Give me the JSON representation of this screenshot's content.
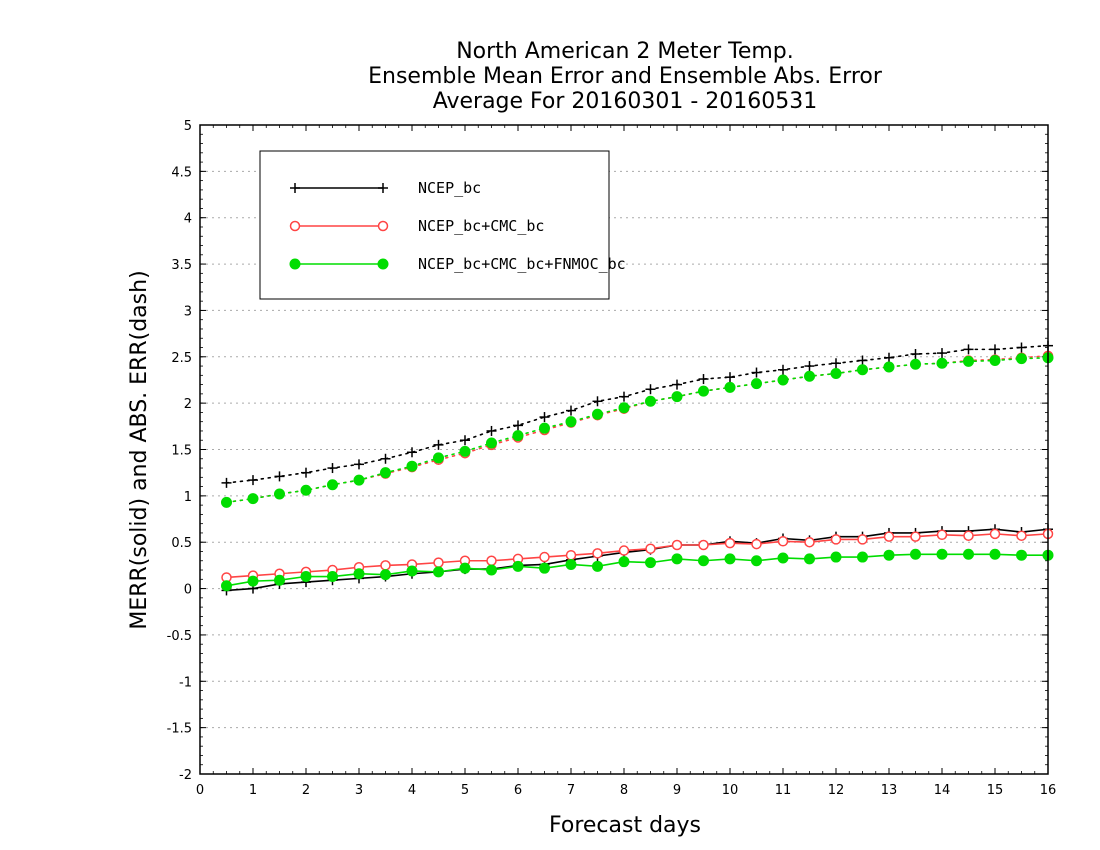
{
  "chart_data": {
    "type": "line",
    "title_lines": [
      "North American 2 Meter Temp.",
      "Ensemble Mean Error and Ensemble Abs. Error",
      "Average For 20160301 - 20160531"
    ],
    "xlabel": "Forecast days",
    "ylabel": "MERR(solid) and ABS. ERR(dash)",
    "xlim": [
      0,
      16
    ],
    "ylim": [
      -2,
      5
    ],
    "x_ticks": [
      0,
      1,
      2,
      3,
      4,
      5,
      6,
      7,
      8,
      9,
      10,
      11,
      12,
      13,
      14,
      15,
      16
    ],
    "y_ticks": [
      -2,
      -1.5,
      -1,
      -0.5,
      0,
      0.5,
      1,
      1.5,
      2,
      2.5,
      3,
      3.5,
      4,
      4.5,
      5
    ],
    "y_tick_labels": [
      "-2",
      "-1.5",
      "-1",
      "-0.5",
      "0",
      "0.5",
      "1",
      "1.5",
      "2",
      "2.5",
      "3",
      "3.5",
      "4",
      "4.5",
      "5"
    ],
    "grid": "horizontal dotted",
    "legend_position": "top-left",
    "x": [
      0.5,
      1,
      1.5,
      2,
      2.5,
      3,
      3.5,
      4,
      4.5,
      5,
      5.5,
      6,
      6.5,
      7,
      7.5,
      8,
      8.5,
      9,
      9.5,
      10,
      10.5,
      11,
      11.5,
      12,
      12.5,
      13,
      13.5,
      14,
      14.5,
      15,
      15.5,
      16
    ],
    "series": [
      {
        "name": "NCEP_bc",
        "color": "#000000",
        "marker": "plus",
        "mean_error": [
          -0.02,
          0.0,
          0.05,
          0.07,
          0.09,
          0.11,
          0.13,
          0.16,
          0.18,
          0.21,
          0.21,
          0.25,
          0.26,
          0.31,
          0.35,
          0.39,
          0.42,
          0.47,
          0.47,
          0.51,
          0.49,
          0.54,
          0.52,
          0.56,
          0.56,
          0.6,
          0.6,
          0.62,
          0.62,
          0.64,
          0.61,
          0.64
        ],
        "abs_error": [
          1.14,
          1.17,
          1.21,
          1.25,
          1.3,
          1.34,
          1.4,
          1.47,
          1.55,
          1.6,
          1.7,
          1.76,
          1.85,
          1.92,
          2.02,
          2.07,
          2.15,
          2.2,
          2.26,
          2.28,
          2.33,
          2.36,
          2.4,
          2.43,
          2.46,
          2.49,
          2.53,
          2.54,
          2.58,
          2.58,
          2.6,
          2.62
        ]
      },
      {
        "name": "NCEP_bc+CMC_bc",
        "color": "#ff4444",
        "marker": "open-circle",
        "mean_error": [
          0.12,
          0.14,
          0.16,
          0.18,
          0.2,
          0.23,
          0.25,
          0.26,
          0.28,
          0.3,
          0.3,
          0.32,
          0.34,
          0.36,
          0.38,
          0.41,
          0.43,
          0.47,
          0.47,
          0.49,
          0.48,
          0.51,
          0.5,
          0.53,
          0.53,
          0.56,
          0.56,
          0.58,
          0.57,
          0.59,
          0.57,
          0.59
        ],
        "abs_error": [
          0.93,
          0.97,
          1.02,
          1.06,
          1.12,
          1.17,
          1.24,
          1.31,
          1.39,
          1.46,
          1.55,
          1.63,
          1.71,
          1.79,
          1.87,
          1.94,
          2.02,
          2.07,
          2.13,
          2.17,
          2.21,
          2.25,
          2.29,
          2.32,
          2.36,
          2.39,
          2.42,
          2.43,
          2.46,
          2.47,
          2.49,
          2.51
        ]
      },
      {
        "name": "NCEP_bc+CMC_bc+FNMOC_bc",
        "color": "#00dd00",
        "marker": "filled-circle",
        "mean_error": [
          0.03,
          0.08,
          0.09,
          0.13,
          0.13,
          0.16,
          0.15,
          0.19,
          0.18,
          0.22,
          0.2,
          0.24,
          0.22,
          0.26,
          0.24,
          0.29,
          0.28,
          0.32,
          0.3,
          0.32,
          0.3,
          0.33,
          0.32,
          0.34,
          0.34,
          0.36,
          0.37,
          0.37,
          0.37,
          0.37,
          0.36,
          0.36
        ],
        "abs_error": [
          0.93,
          0.97,
          1.02,
          1.06,
          1.12,
          1.17,
          1.25,
          1.32,
          1.41,
          1.48,
          1.57,
          1.65,
          1.73,
          1.8,
          1.88,
          1.95,
          2.02,
          2.07,
          2.13,
          2.17,
          2.21,
          2.25,
          2.29,
          2.32,
          2.36,
          2.39,
          2.42,
          2.43,
          2.45,
          2.46,
          2.48,
          2.49
        ]
      }
    ]
  }
}
